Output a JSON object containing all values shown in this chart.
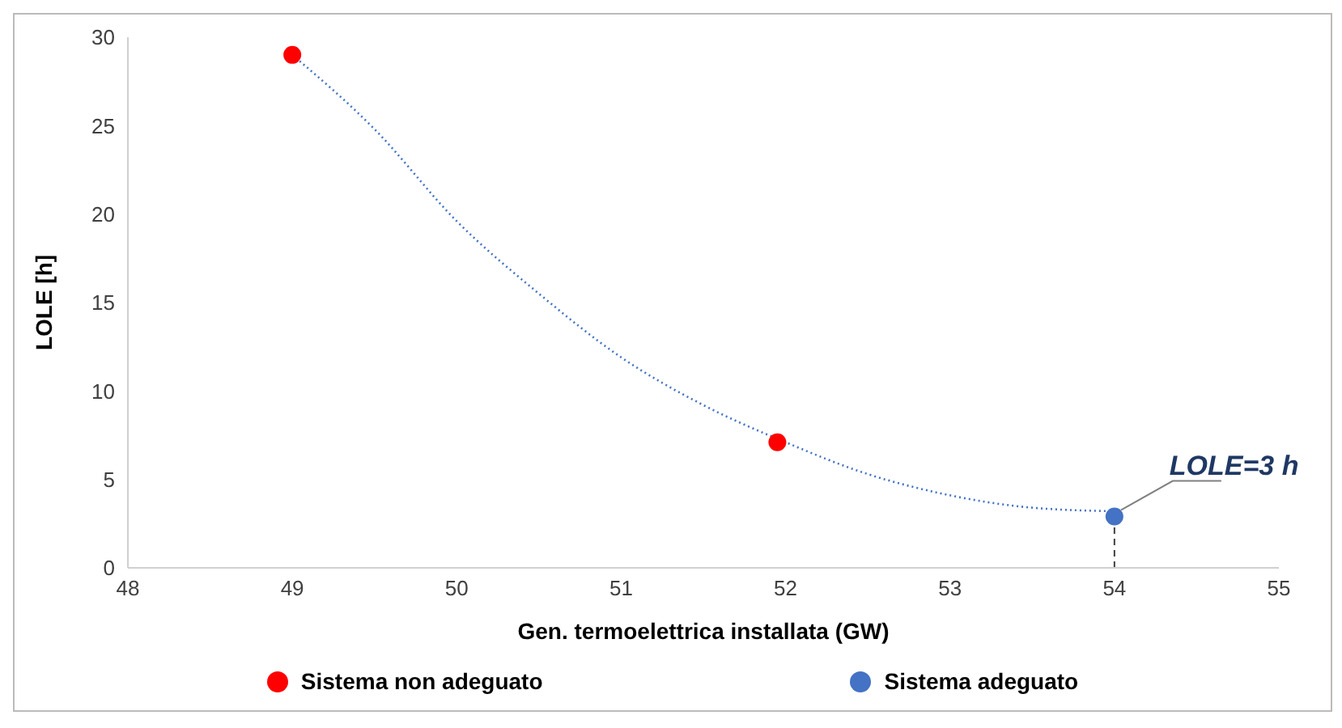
{
  "chart_data": {
    "type": "scatter",
    "xlabel": "Gen. termoelettrica installata (GW)",
    "ylabel": "LOLE [h]",
    "xlim": [
      48,
      55
    ],
    "xticks": [
      48,
      49,
      50,
      51,
      52,
      53,
      54,
      55
    ],
    "ylim": [
      0,
      30
    ],
    "yticks": [
      0,
      5,
      10,
      15,
      20,
      25,
      30
    ],
    "legend": "bottom",
    "marker": "circle",
    "series": [
      {
        "type": "line",
        "color": "#4472c4",
        "line_style": "dotted",
        "marker": "none",
        "x": [
          49,
          49.5,
          50,
          50.5,
          51,
          51.5,
          52,
          52.5,
          53,
          53.5,
          54
        ],
        "values": [
          29,
          24.8,
          19.6,
          15.5,
          11.9,
          9.2,
          7.1,
          5.3,
          4.1,
          3.4,
          3.2
        ]
      },
      {
        "name": "Sistema non adeguato",
        "color": "#ff0000",
        "x": [
          49,
          51.95
        ],
        "values": [
          29,
          7.1
        ]
      },
      {
        "name": "Sistema adeguato",
        "color": "#4472c4",
        "x": [
          54
        ],
        "values": [
          2.9
        ]
      }
    ],
    "ref_lines": [
      {
        "axis": "x",
        "value": 54,
        "color": "#404040",
        "line_style": "dashed"
      }
    ],
    "annotations": [
      {
        "text": "LOLE=3 h",
        "x": 54,
        "y": 2.9
      }
    ]
  }
}
